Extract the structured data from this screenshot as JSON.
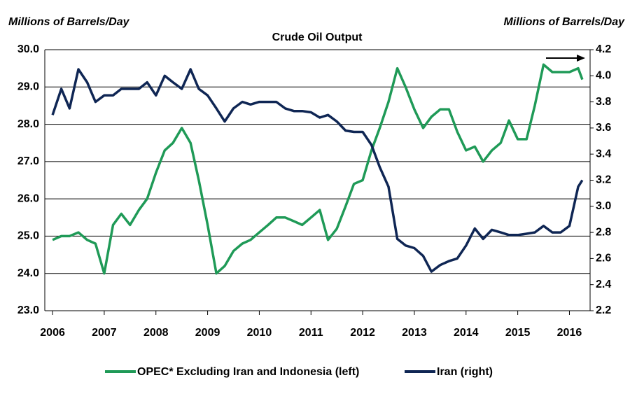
{
  "chart_data": {
    "type": "line",
    "title": "Crude Oil Output",
    "ylabel": "Millions of Barrels/Day",
    "y2label": "Millions of Barrels/Day",
    "x": [
      2006.0,
      2006.17,
      2006.33,
      2006.5,
      2006.67,
      2006.83,
      2007.0,
      2007.17,
      2007.33,
      2007.5,
      2007.67,
      2007.83,
      2008.0,
      2008.17,
      2008.33,
      2008.5,
      2008.67,
      2008.83,
      2009.0,
      2009.17,
      2009.33,
      2009.5,
      2009.67,
      2009.83,
      2010.0,
      2010.17,
      2010.33,
      2010.5,
      2010.67,
      2010.83,
      2011.0,
      2011.17,
      2011.33,
      2011.5,
      2011.67,
      2011.83,
      2012.0,
      2012.17,
      2012.33,
      2012.5,
      2012.67,
      2012.83,
      2013.0,
      2013.17,
      2013.33,
      2013.5,
      2013.67,
      2013.83,
      2014.0,
      2014.17,
      2014.33,
      2014.5,
      2014.67,
      2014.83,
      2015.0,
      2015.17,
      2015.33,
      2015.5,
      2015.67,
      2015.83,
      2016.0,
      2016.17,
      2016.25
    ],
    "series": [
      {
        "name": "OPEC* Excluding Iran and Indonesia (left)",
        "color": "#1f9a57",
        "values": [
          24.9,
          25.0,
          25.0,
          25.1,
          24.9,
          24.8,
          24.0,
          25.3,
          25.6,
          25.3,
          25.7,
          26.0,
          26.7,
          27.3,
          27.5,
          27.9,
          27.5,
          26.5,
          25.3,
          24.0,
          24.2,
          24.6,
          24.8,
          24.9,
          25.1,
          25.3,
          25.5,
          25.5,
          25.4,
          25.3,
          25.5,
          25.7,
          24.9,
          25.2,
          25.8,
          26.4,
          26.5,
          27.3,
          27.9,
          28.6,
          29.5,
          29.0,
          28.4,
          27.9,
          28.2,
          28.4,
          28.4,
          27.8,
          27.3,
          27.4,
          27.0,
          27.3,
          27.5,
          28.1,
          27.6,
          27.6,
          28.5,
          29.6,
          29.4,
          29.4,
          29.4,
          29.5,
          29.2
        ]
      },
      {
        "name": "Iran (right)",
        "color": "#0f2654",
        "axis": "y2",
        "values": [
          3.7,
          3.9,
          3.75,
          4.05,
          3.95,
          3.8,
          3.85,
          3.85,
          3.9,
          3.9,
          3.9,
          3.95,
          3.85,
          4.0,
          3.95,
          3.9,
          4.05,
          3.9,
          3.85,
          3.75,
          3.65,
          3.75,
          3.8,
          3.78,
          3.8,
          3.8,
          3.8,
          3.75,
          3.73,
          3.73,
          3.72,
          3.68,
          3.7,
          3.65,
          3.58,
          3.57,
          3.57,
          3.47,
          3.3,
          3.15,
          2.75,
          2.7,
          2.68,
          2.62,
          2.5,
          2.55,
          2.58,
          2.6,
          2.7,
          2.83,
          2.75,
          2.82,
          2.8,
          2.78,
          2.78,
          2.79,
          2.8,
          2.85,
          2.8,
          2.8,
          2.85,
          3.15,
          3.2
        ]
      }
    ],
    "xlim": [
      2005.85,
      2016.4
    ],
    "xticks": [
      2006,
      2007,
      2008,
      2009,
      2010,
      2011,
      2012,
      2013,
      2014,
      2015,
      2016
    ],
    "ylim": [
      23,
      30
    ],
    "yticks": [
      {
        "value": 23,
        "label": "23.0"
      },
      {
        "value": 24,
        "label": "24.0"
      },
      {
        "value": 25,
        "label": "25.0"
      },
      {
        "value": 26,
        "label": "26.0"
      },
      {
        "value": 27,
        "label": "27.0"
      },
      {
        "value": 28,
        "label": "28.0"
      },
      {
        "value": 29,
        "label": "29.0"
      },
      {
        "value": 30,
        "label": "30.0"
      }
    ],
    "y2lim": [
      2.2,
      4.2
    ],
    "y2ticks": [
      2.2,
      2.4,
      2.6,
      2.8,
      {
        "value": 3,
        "label": "3.0"
      },
      3.2,
      3.4,
      3.6,
      3.8,
      {
        "value": 4,
        "label": "4.0"
      },
      4.2
    ],
    "grid": true
  }
}
